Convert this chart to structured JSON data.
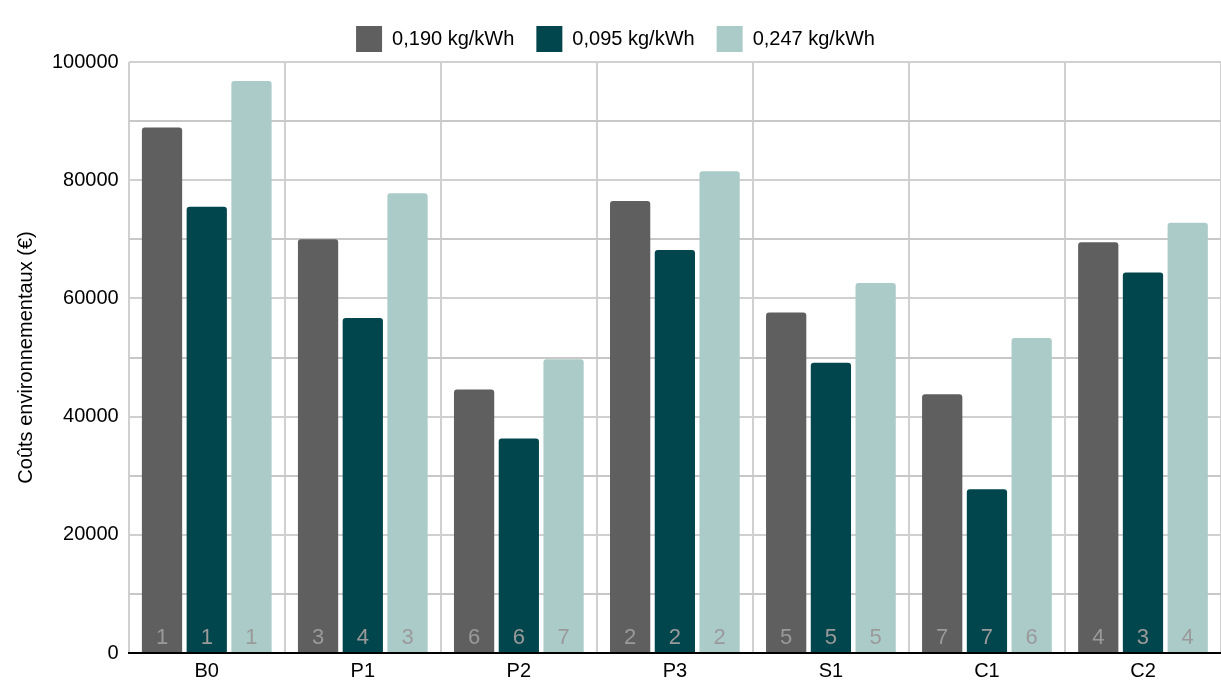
{
  "chart_data": {
    "type": "bar",
    "ylabel": "Coûts environnementaux (€)",
    "categories": [
      "B0",
      "P1",
      "P2",
      "P3",
      "S1",
      "C1",
      "C2"
    ],
    "series": [
      {
        "name": "0,190 kg/kWh",
        "color": "#5f5f5f",
        "values": [
          88900,
          70000,
          44600,
          76500,
          57600,
          43800,
          69500
        ]
      },
      {
        "name": "0,095 kg/kWh",
        "color": "#02464d",
        "values": [
          75500,
          56700,
          36300,
          68200,
          49100,
          27700,
          64400
        ]
      },
      {
        "name": "0,247 kg/kWh",
        "color": "#abcbc9",
        "values": [
          96800,
          77800,
          49700,
          81500,
          62600,
          53300,
          72800
        ]
      }
    ],
    "annotations": [
      {
        "text": "1",
        "x": "B0",
        "y": 0
      },
      {
        "text": "1",
        "x": "B0",
        "y": 0
      },
      {
        "text": "1",
        "x": "B0",
        "y": 0
      },
      {
        "text": "3",
        "x": "P1",
        "y": 0
      },
      {
        "text": "4",
        "x": "P1",
        "y": 0
      },
      {
        "text": "3",
        "x": "P1",
        "y": 0
      },
      {
        "text": "6",
        "x": "P2",
        "y": 0
      },
      {
        "text": "6",
        "x": "P2",
        "y": 0
      },
      {
        "text": "7",
        "x": "P2",
        "y": 0
      },
      {
        "text": "2",
        "x": "P3",
        "y": 0
      },
      {
        "text": "2",
        "x": "P3",
        "y": 0
      },
      {
        "text": "2",
        "x": "P3",
        "y": 0
      },
      {
        "text": "5",
        "x": "S1",
        "y": 0
      },
      {
        "text": "5",
        "x": "S1",
        "y": 0
      },
      {
        "text": "5",
        "x": "S1",
        "y": 0
      },
      {
        "text": "7",
        "x": "C1",
        "y": 0
      },
      {
        "text": "7",
        "x": "C1",
        "y": 0
      },
      {
        "text": "6",
        "x": "C1",
        "y": 0
      },
      {
        "text": "4",
        "x": "C2",
        "y": 0
      },
      {
        "text": "3",
        "x": "C2",
        "y": 0
      },
      {
        "text": "4",
        "x": "C2",
        "y": 0
      }
    ],
    "ylim": [
      0,
      100000
    ],
    "yticks": [
      0,
      {
        "value": 10000,
        "label": null
      },
      20000,
      {
        "value": 30000,
        "label": null
      },
      40000,
      {
        "value": 50000,
        "label": null
      },
      60000,
      {
        "value": 70000,
        "label": null
      },
      80000,
      {
        "value": 90000,
        "label": null
      },
      100000
    ],
    "grid": true,
    "legend": "top"
  }
}
